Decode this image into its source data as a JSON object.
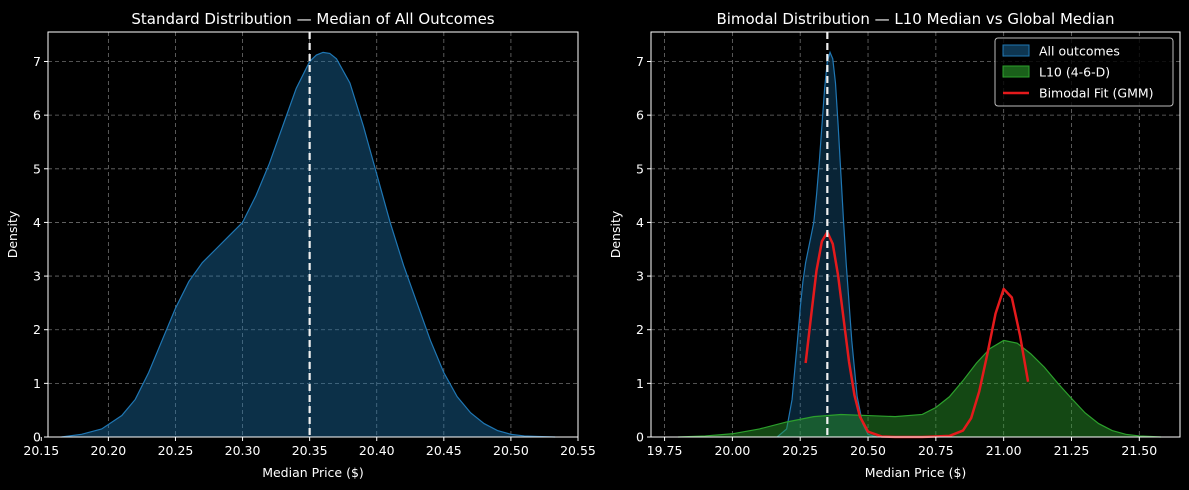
{
  "chart_data": [
    {
      "type": "area",
      "title": "Standard Distribution — Median of All Outcomes",
      "xlabel": "Median Price ($)",
      "ylabel": "Density",
      "xlim": [
        20.155,
        20.55
      ],
      "ylim": [
        0,
        7.55
      ],
      "xticks": [
        20.15,
        20.2,
        20.25,
        20.3,
        20.35,
        20.4,
        20.45,
        20.5,
        20.55
      ],
      "xtick_labels": [
        "20.15",
        "20.20",
        "20.25",
        "20.30",
        "20.35",
        "20.40",
        "20.45",
        "20.50",
        "20.55"
      ],
      "yticks": [
        0,
        1,
        2,
        3,
        4,
        5,
        6,
        7
      ],
      "ytick_labels": [
        "0",
        "1",
        "2",
        "3",
        "4",
        "5",
        "6",
        "7"
      ],
      "grid": true,
      "vline": 20.35,
      "series": [
        {
          "color": "#1f77b4",
          "x": [
            20.165,
            20.18,
            20.195,
            20.21,
            20.22,
            20.23,
            20.24,
            20.25,
            20.26,
            20.27,
            20.28,
            20.29,
            20.3,
            20.31,
            20.32,
            20.33,
            20.34,
            20.35,
            20.355,
            20.36,
            20.365,
            20.37,
            20.38,
            20.39,
            20.4,
            20.41,
            20.42,
            20.43,
            20.44,
            20.45,
            20.46,
            20.47,
            20.48,
            20.49,
            20.5,
            20.51,
            20.52,
            20.533
          ],
          "y": [
            0.0,
            0.05,
            0.15,
            0.4,
            0.7,
            1.2,
            1.8,
            2.4,
            2.9,
            3.25,
            3.5,
            3.75,
            4.0,
            4.5,
            5.1,
            5.8,
            6.5,
            7.0,
            7.12,
            7.17,
            7.15,
            7.05,
            6.6,
            5.8,
            4.9,
            4.0,
            3.2,
            2.5,
            1.8,
            1.2,
            0.75,
            0.45,
            0.25,
            0.12,
            0.05,
            0.02,
            0.01,
            0.0
          ]
        }
      ]
    },
    {
      "type": "area",
      "title": "Bimodal Distribution — L10 Median vs Global Median",
      "xlabel": "Median Price ($)",
      "ylabel": "Density",
      "xlim": [
        19.7,
        21.65
      ],
      "ylim": [
        0,
        7.55
      ],
      "xticks": [
        19.75,
        20.0,
        20.25,
        20.5,
        20.75,
        21.0,
        21.25,
        21.5
      ],
      "xtick_labels": [
        "19.75",
        "20.00",
        "20.25",
        "20.50",
        "20.75",
        "21.00",
        "21.25",
        "21.50"
      ],
      "yticks": [
        0,
        1,
        2,
        3,
        4,
        5,
        6,
        7
      ],
      "ytick_labels": [
        "0",
        "1",
        "2",
        "3",
        "4",
        "5",
        "6",
        "7"
      ],
      "grid": true,
      "vline": 20.35,
      "legend": {
        "position": "top-right",
        "entries": [
          "All outcomes",
          "L10 (4-6-D)",
          "Bimodal Fit (GMM)"
        ]
      },
      "series": [
        {
          "name": "All outcomes",
          "style": "area",
          "color": "#1f77b4",
          "x": [
            20.165,
            20.2,
            20.22,
            20.24,
            20.25,
            20.26,
            20.27,
            20.28,
            20.29,
            20.3,
            20.31,
            20.32,
            20.33,
            20.34,
            20.35,
            20.36,
            20.37,
            20.38,
            20.39,
            20.4,
            20.41,
            20.42,
            20.43,
            20.44,
            20.46,
            20.48,
            20.5,
            20.533
          ],
          "y": [
            0.0,
            0.15,
            0.7,
            1.8,
            2.4,
            2.9,
            3.25,
            3.5,
            3.75,
            4.0,
            4.5,
            5.1,
            5.8,
            6.5,
            7.0,
            7.17,
            7.05,
            6.6,
            5.8,
            4.9,
            4.0,
            3.2,
            2.5,
            1.8,
            0.75,
            0.25,
            0.05,
            0.0
          ]
        },
        {
          "name": "L10 (4-6-D)",
          "style": "area",
          "color": "#2ca02c",
          "x": [
            19.8,
            19.9,
            20.0,
            20.1,
            20.2,
            20.3,
            20.4,
            20.5,
            20.6,
            20.7,
            20.75,
            20.8,
            20.85,
            20.9,
            20.95,
            21.0,
            21.05,
            21.1,
            21.15,
            21.2,
            21.25,
            21.3,
            21.35,
            21.4,
            21.45,
            21.5,
            21.58
          ],
          "y": [
            0.0,
            0.02,
            0.06,
            0.15,
            0.28,
            0.38,
            0.42,
            0.4,
            0.38,
            0.42,
            0.55,
            0.75,
            1.05,
            1.38,
            1.65,
            1.8,
            1.75,
            1.55,
            1.3,
            1.0,
            0.72,
            0.45,
            0.25,
            0.12,
            0.05,
            0.02,
            0.0
          ]
        },
        {
          "name": "Bimodal Fit (GMM)",
          "style": "line",
          "color": "#e41a1c",
          "x": [
            20.27,
            20.29,
            20.31,
            20.33,
            20.35,
            20.37,
            20.39,
            20.41,
            20.43,
            20.45,
            20.47,
            20.5,
            20.55,
            20.6,
            20.7,
            20.8,
            20.85,
            20.88,
            20.91,
            20.94,
            20.97,
            21.0,
            21.03,
            21.06,
            21.09
          ],
          "y": [
            1.38,
            2.25,
            3.1,
            3.65,
            3.82,
            3.6,
            3.0,
            2.2,
            1.4,
            0.78,
            0.38,
            0.1,
            0.01,
            0.0,
            0.0,
            0.02,
            0.12,
            0.35,
            0.85,
            1.55,
            2.3,
            2.76,
            2.6,
            1.9,
            1.03
          ]
        }
      ]
    }
  ]
}
